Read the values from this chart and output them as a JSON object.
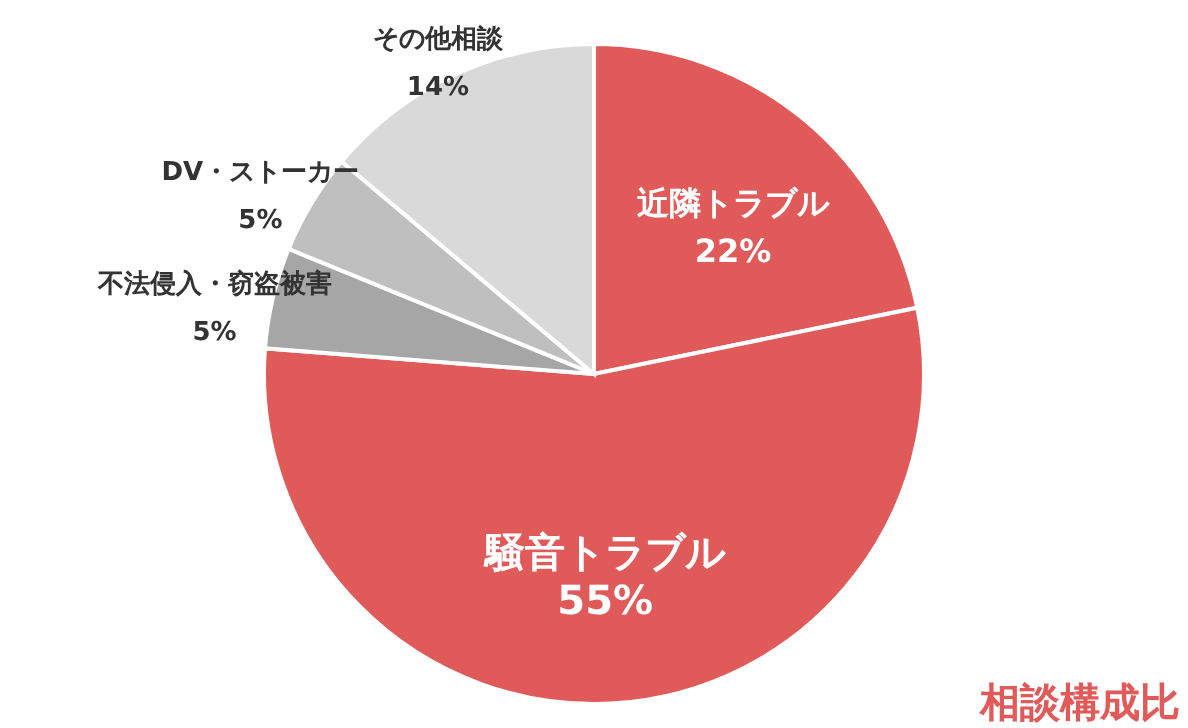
{
  "chart_data": {
    "type": "pie",
    "title": "相談構成比",
    "categories": [
      "近隣トラブル",
      "騒音トラブル",
      "不法侵入・窃盗被害",
      "DV・ストーカー",
      "その他相談"
    ],
    "values": [
      22,
      55,
      5,
      5,
      14
    ],
    "value_labels": [
      "22%",
      "55%",
      "5%",
      "5%",
      "14%"
    ],
    "colors": [
      "#e05a5a",
      "#e05a5a",
      "#a6a6a6",
      "#bfbfbf",
      "#d9d9d9"
    ]
  }
}
